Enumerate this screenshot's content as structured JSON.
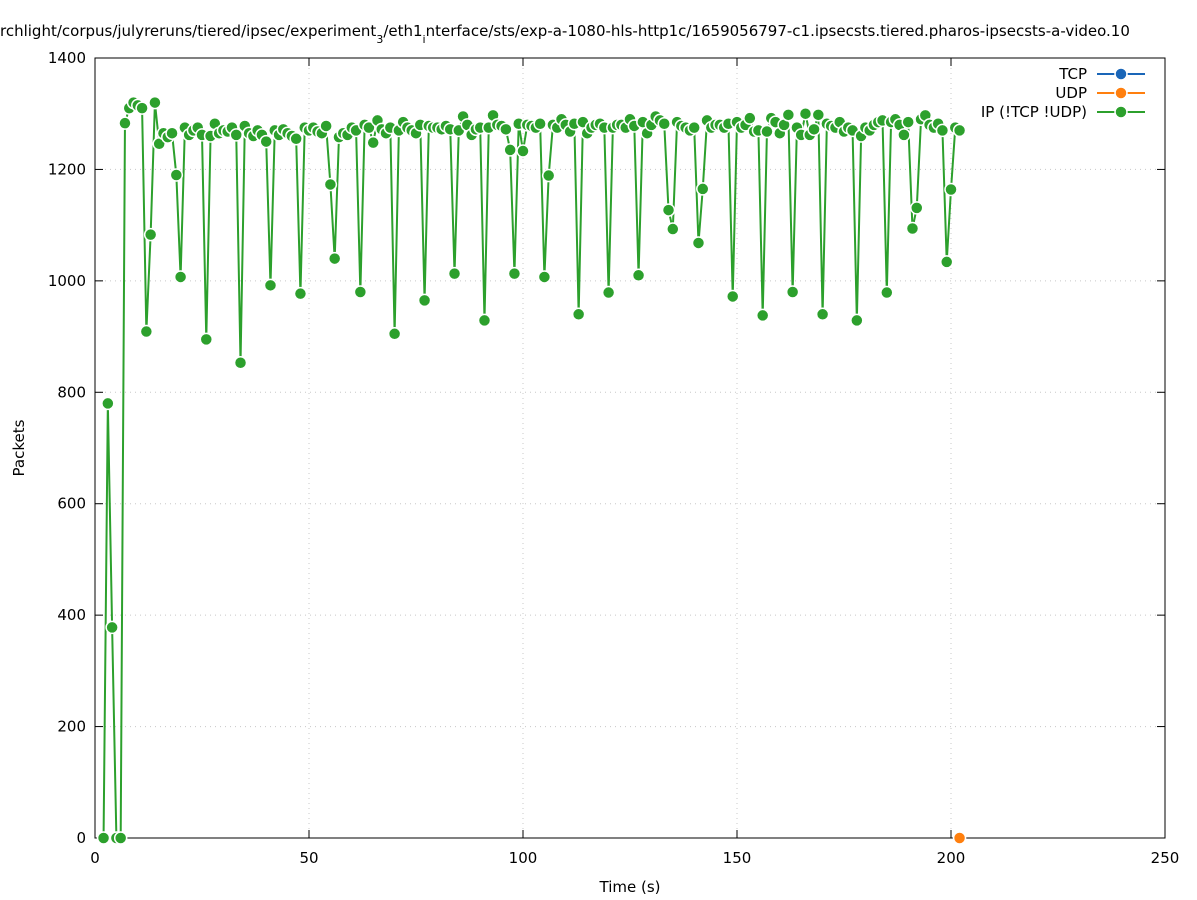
{
  "chart_data": {
    "type": "line",
    "title": [
      "rchlight/corpus/julyreruns/tiered/ipsec/experiment",
      "3",
      "/eth1",
      "i",
      "nterface/sts/exp-a-1080-hls-http1c/1659056797-c1.ipsecsts.tiered.pharos-ipsecsts-a-video.10"
    ],
    "x_label": "Time (s)",
    "y_label": "Packets",
    "xlim": [
      0,
      250
    ],
    "ylim": [
      0,
      1400
    ],
    "xticks": [
      0,
      50,
      100,
      150,
      200,
      250
    ],
    "yticks": [
      0,
      200,
      400,
      600,
      800,
      1000,
      1200,
      1400
    ],
    "grid": true,
    "legend": "top-right",
    "series": [
      {
        "name": "TCP",
        "color": "#1a66b8",
        "x": [],
        "values": []
      },
      {
        "name": "UDP",
        "color": "#ff7f0e",
        "x": [
          202
        ],
        "values": [
          0
        ]
      },
      {
        "name": "IP (!TCP  !UDP)",
        "color": "#2ca02c",
        "x": [
          2,
          3,
          4,
          5,
          6,
          7,
          8,
          9,
          10,
          11,
          12,
          13,
          14,
          15,
          16,
          17,
          18,
          19,
          20,
          21,
          22,
          23,
          24,
          25,
          26,
          27,
          28,
          29,
          30,
          31,
          32,
          33,
          34,
          35,
          36,
          37,
          38,
          39,
          40,
          41,
          42,
          43,
          44,
          45,
          46,
          47,
          48,
          49,
          50,
          51,
          52,
          53,
          54,
          55,
          56,
          57,
          58,
          59,
          60,
          61,
          62,
          63,
          64,
          65,
          66,
          67,
          68,
          69,
          70,
          71,
          72,
          73,
          74,
          75,
          76,
          77,
          78,
          79,
          80,
          81,
          82,
          83,
          84,
          85,
          86,
          87,
          88,
          89,
          90,
          91,
          92,
          93,
          94,
          95,
          96,
          97,
          98,
          99,
          100,
          101,
          102,
          103,
          104,
          105,
          106,
          107,
          108,
          109,
          110,
          111,
          112,
          113,
          114,
          115,
          116,
          117,
          118,
          119,
          120,
          121,
          122,
          123,
          124,
          125,
          126,
          127,
          128,
          129,
          130,
          131,
          132,
          133,
          134,
          135,
          136,
          137,
          138,
          139,
          140,
          141,
          142,
          143,
          144,
          145,
          146,
          147,
          148,
          149,
          150,
          151,
          152,
          153,
          154,
          155,
          156,
          157,
          158,
          159,
          160,
          161,
          162,
          163,
          164,
          165,
          166,
          167,
          168,
          169,
          170,
          171,
          172,
          173,
          174,
          175,
          176,
          177,
          178,
          179,
          180,
          181,
          182,
          183,
          184,
          185,
          186,
          187,
          188,
          189,
          190,
          191,
          192,
          193,
          194,
          195,
          196,
          197,
          198,
          199,
          200,
          201,
          202
        ],
        "values": [
          0,
          780,
          378,
          0,
          0,
          1283,
          1310,
          1320,
          1315,
          1310,
          909,
          1083,
          1320,
          1246,
          1265,
          1258,
          1265,
          1190,
          1007,
          1275,
          1262,
          1270,
          1275,
          1262,
          895,
          1260,
          1282,
          1265,
          1270,
          1268,
          1275,
          1262,
          853,
          1278,
          1265,
          1260,
          1270,
          1262,
          1250,
          992,
          1270,
          1262,
          1272,
          1265,
          1260,
          1255,
          977,
          1275,
          1270,
          1275,
          1268,
          1265,
          1278,
          1173,
          1040,
          1258,
          1265,
          1262,
          1275,
          1270,
          980,
          1280,
          1275,
          1248,
          1288,
          1272,
          1265,
          1275,
          905,
          1270,
          1285,
          1275,
          1270,
          1265,
          1280,
          965,
          1278,
          1275,
          1275,
          1272,
          1278,
          1272,
          1013,
          1270,
          1295,
          1280,
          1262,
          1272,
          1275,
          929,
          1275,
          1297,
          1280,
          1278,
          1272,
          1235,
          1013,
          1282,
          1233,
          1280,
          1278,
          1275,
          1282,
          1007,
          1189,
          1280,
          1275,
          1290,
          1280,
          1268,
          1282,
          940,
          1285,
          1265,
          1275,
          1280,
          1282,
          1275,
          979,
          1275,
          1280,
          1280,
          1275,
          1290,
          1278,
          1010,
          1285,
          1265,
          1280,
          1295,
          1288,
          1282,
          1127,
          1093,
          1285,
          1278,
          1275,
          1270,
          1275,
          1068,
          1165,
          1288,
          1275,
          1280,
          1280,
          1275,
          1282,
          972,
          1285,
          1275,
          1280,
          1292,
          1268,
          1270,
          938,
          1268,
          1292,
          1285,
          1265,
          1280,
          1298,
          980,
          1275,
          1262,
          1300,
          1262,
          1272,
          1298,
          940,
          1282,
          1278,
          1275,
          1285,
          1268,
          1275,
          1270,
          929,
          1260,
          1275,
          1270,
          1280,
          1285,
          1288,
          979,
          1285,
          1290,
          1280,
          1262,
          1285,
          1094,
          1131,
          1290,
          1297,
          1280,
          1275,
          1282,
          1270,
          1034,
          1164,
          1275,
          1270
        ]
      }
    ]
  }
}
